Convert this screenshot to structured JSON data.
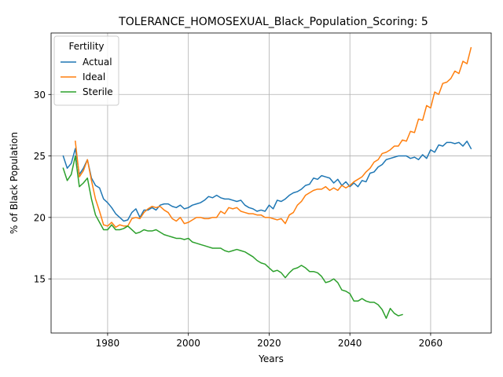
{
  "chart_data": {
    "type": "line",
    "title": "TOLERANCE_HOMOSEXUAL_Black_Population_Scoring: 5",
    "xlabel": "Years",
    "ylabel": "% of Black Population",
    "xlim": [
      1966,
      2075
    ],
    "ylim": [
      10.6,
      35.0
    ],
    "xticks": [
      1980,
      2000,
      2020,
      2040,
      2060
    ],
    "yticks": [
      15,
      20,
      25,
      30
    ],
    "grid": true,
    "legend": {
      "title": "Fertility",
      "placement": "upper-left"
    },
    "series": [
      {
        "name": "Actual",
        "color": "#1f77b4",
        "x": [
          1969,
          1970,
          1971,
          1972,
          1973,
          1974,
          1975,
          1976,
          1977,
          1978,
          1979,
          1980,
          1981,
          1982,
          1983,
          1984,
          1985,
          1986,
          1987,
          1988,
          1989,
          1990,
          1991,
          1992,
          1993,
          1994,
          1995,
          1996,
          1997,
          1998,
          1999,
          2000,
          2001,
          2002,
          2003,
          2004,
          2005,
          2006,
          2007,
          2008,
          2009,
          2010,
          2011,
          2012,
          2013,
          2014,
          2015,
          2016,
          2017,
          2018,
          2019,
          2020,
          2021,
          2022,
          2023,
          2024,
          2025,
          2026,
          2027,
          2028,
          2029,
          2030,
          2031,
          2032,
          2033,
          2034,
          2035,
          2036,
          2037,
          2038,
          2039,
          2040,
          2041,
          2042,
          2043,
          2044,
          2045,
          2046,
          2047,
          2048,
          2049,
          2050,
          2051,
          2052,
          2053,
          2054,
          2055,
          2056,
          2057,
          2058,
          2059,
          2060,
          2061,
          2062,
          2063,
          2064,
          2065,
          2066,
          2067,
          2068,
          2069,
          2070
        ],
        "y": [
          25.0,
          24.0,
          24.4,
          25.6,
          23.5,
          24.0,
          24.7,
          23.2,
          22.6,
          22.4,
          21.5,
          21.2,
          20.8,
          20.3,
          20.0,
          19.7,
          19.8,
          20.4,
          20.7,
          20.0,
          20.6,
          20.6,
          20.8,
          20.6,
          21.0,
          21.1,
          21.1,
          20.9,
          20.8,
          21.0,
          20.7,
          20.8,
          21.0,
          21.1,
          21.2,
          21.4,
          21.7,
          21.6,
          21.8,
          21.6,
          21.5,
          21.5,
          21.4,
          21.3,
          21.4,
          21.0,
          20.8,
          20.7,
          20.5,
          20.6,
          20.5,
          21.0,
          20.7,
          21.4,
          21.3,
          21.5,
          21.8,
          22.0,
          22.1,
          22.3,
          22.6,
          22.7,
          23.2,
          23.1,
          23.4,
          23.3,
          23.2,
          22.8,
          23.1,
          22.6,
          22.9,
          22.5,
          22.8,
          22.5,
          23.0,
          22.9,
          23.6,
          23.7,
          24.1,
          24.3,
          24.7,
          24.8,
          24.9,
          25.0,
          25.0,
          25.0,
          24.8,
          24.9,
          24.7,
          25.1,
          24.8,
          25.5,
          25.3,
          25.9,
          25.8,
          26.1,
          26.1,
          26.0,
          26.1,
          25.8,
          26.2,
          25.6
        ]
      },
      {
        "name": "Ideal",
        "color": "#ff7f0e",
        "x": [
          1972,
          1973,
          1974,
          1975,
          1976,
          1977,
          1978,
          1979,
          1980,
          1981,
          1982,
          1983,
          1984,
          1985,
          1986,
          1987,
          1988,
          1989,
          1990,
          1991,
          1992,
          1993,
          1994,
          1995,
          1996,
          1997,
          1998,
          1999,
          2000,
          2001,
          2002,
          2003,
          2004,
          2005,
          2006,
          2007,
          2008,
          2009,
          2010,
          2011,
          2012,
          2013,
          2014,
          2015,
          2016,
          2017,
          2018,
          2019,
          2020,
          2021,
          2022,
          2023,
          2024,
          2025,
          2026,
          2027,
          2028,
          2029,
          2030,
          2031,
          2032,
          2033,
          2034,
          2035,
          2036,
          2037,
          2038,
          2039,
          2040,
          2041,
          2042,
          2043,
          2044,
          2045,
          2046,
          2047,
          2048,
          2049,
          2050,
          2051,
          2052,
          2053,
          2054,
          2055,
          2056,
          2057,
          2058,
          2059,
          2060,
          2061,
          2062,
          2063,
          2064,
          2065,
          2066,
          2067,
          2068,
          2069,
          2070
        ],
        "y": [
          26.2,
          23.3,
          23.8,
          24.7,
          23.0,
          21.5,
          20.5,
          19.4,
          19.3,
          19.6,
          19.2,
          19.4,
          19.3,
          19.3,
          19.9,
          20.0,
          19.9,
          20.4,
          20.7,
          20.9,
          20.8,
          20.9,
          20.6,
          20.4,
          19.9,
          19.7,
          20.0,
          19.5,
          19.6,
          19.8,
          20.0,
          20.0,
          19.9,
          19.9,
          20.0,
          20.0,
          20.5,
          20.3,
          20.8,
          20.7,
          20.8,
          20.5,
          20.4,
          20.3,
          20.3,
          20.2,
          20.2,
          20.0,
          20.0,
          19.9,
          19.8,
          19.9,
          19.5,
          20.2,
          20.4,
          21.0,
          21.3,
          21.8,
          22.0,
          22.2,
          22.3,
          22.3,
          22.5,
          22.2,
          22.4,
          22.2,
          22.6,
          22.4,
          22.6,
          22.9,
          23.1,
          23.3,
          23.7,
          24.0,
          24.5,
          24.7,
          25.2,
          25.3,
          25.5,
          25.8,
          25.8,
          26.3,
          26.2,
          27.0,
          26.9,
          28.0,
          27.9,
          29.1,
          28.9,
          30.2,
          30.0,
          30.9,
          31.0,
          31.3,
          31.9,
          31.7,
          32.7,
          32.5,
          33.8
        ]
      },
      {
        "name": "Sterile",
        "color": "#2ca02c",
        "x": [
          1969,
          1970,
          1971,
          1972,
          1973,
          1974,
          1975,
          1976,
          1977,
          1978,
          1979,
          1980,
          1981,
          1982,
          1983,
          1984,
          1985,
          1986,
          1987,
          1988,
          1989,
          1990,
          1991,
          1992,
          1993,
          1994,
          1995,
          1996,
          1997,
          1998,
          1999,
          2000,
          2001,
          2002,
          2003,
          2004,
          2005,
          2006,
          2007,
          2008,
          2009,
          2010,
          2011,
          2012,
          2013,
          2014,
          2015,
          2016,
          2017,
          2018,
          2019,
          2020,
          2021,
          2022,
          2023,
          2024,
          2025,
          2026,
          2027,
          2028,
          2029,
          2030,
          2031,
          2032,
          2033,
          2034,
          2035,
          2036,
          2037,
          2038,
          2039,
          2040,
          2041,
          2042,
          2043,
          2044,
          2045,
          2046,
          2047,
          2048,
          2049,
          2050,
          2051,
          2052,
          2053
        ],
        "y": [
          24.0,
          23.0,
          23.5,
          25.0,
          22.5,
          22.8,
          23.2,
          21.5,
          20.2,
          19.6,
          19.0,
          19.0,
          19.4,
          19.0,
          19.0,
          19.1,
          19.3,
          19.0,
          18.7,
          18.8,
          19.0,
          18.9,
          18.9,
          19.0,
          18.8,
          18.6,
          18.5,
          18.4,
          18.3,
          18.3,
          18.2,
          18.3,
          18.0,
          17.9,
          17.8,
          17.7,
          17.6,
          17.5,
          17.5,
          17.5,
          17.3,
          17.2,
          17.3,
          17.4,
          17.3,
          17.2,
          17.0,
          16.8,
          16.5,
          16.3,
          16.2,
          15.9,
          15.6,
          15.7,
          15.5,
          15.1,
          15.5,
          15.8,
          15.9,
          16.1,
          15.9,
          15.6,
          15.6,
          15.5,
          15.2,
          14.7,
          14.8,
          15.0,
          14.7,
          14.1,
          14.0,
          13.8,
          13.2,
          13.2,
          13.4,
          13.2,
          13.1,
          13.1,
          12.9,
          12.5,
          11.8,
          12.6,
          12.2,
          12.0,
          12.1
        ]
      }
    ]
  }
}
